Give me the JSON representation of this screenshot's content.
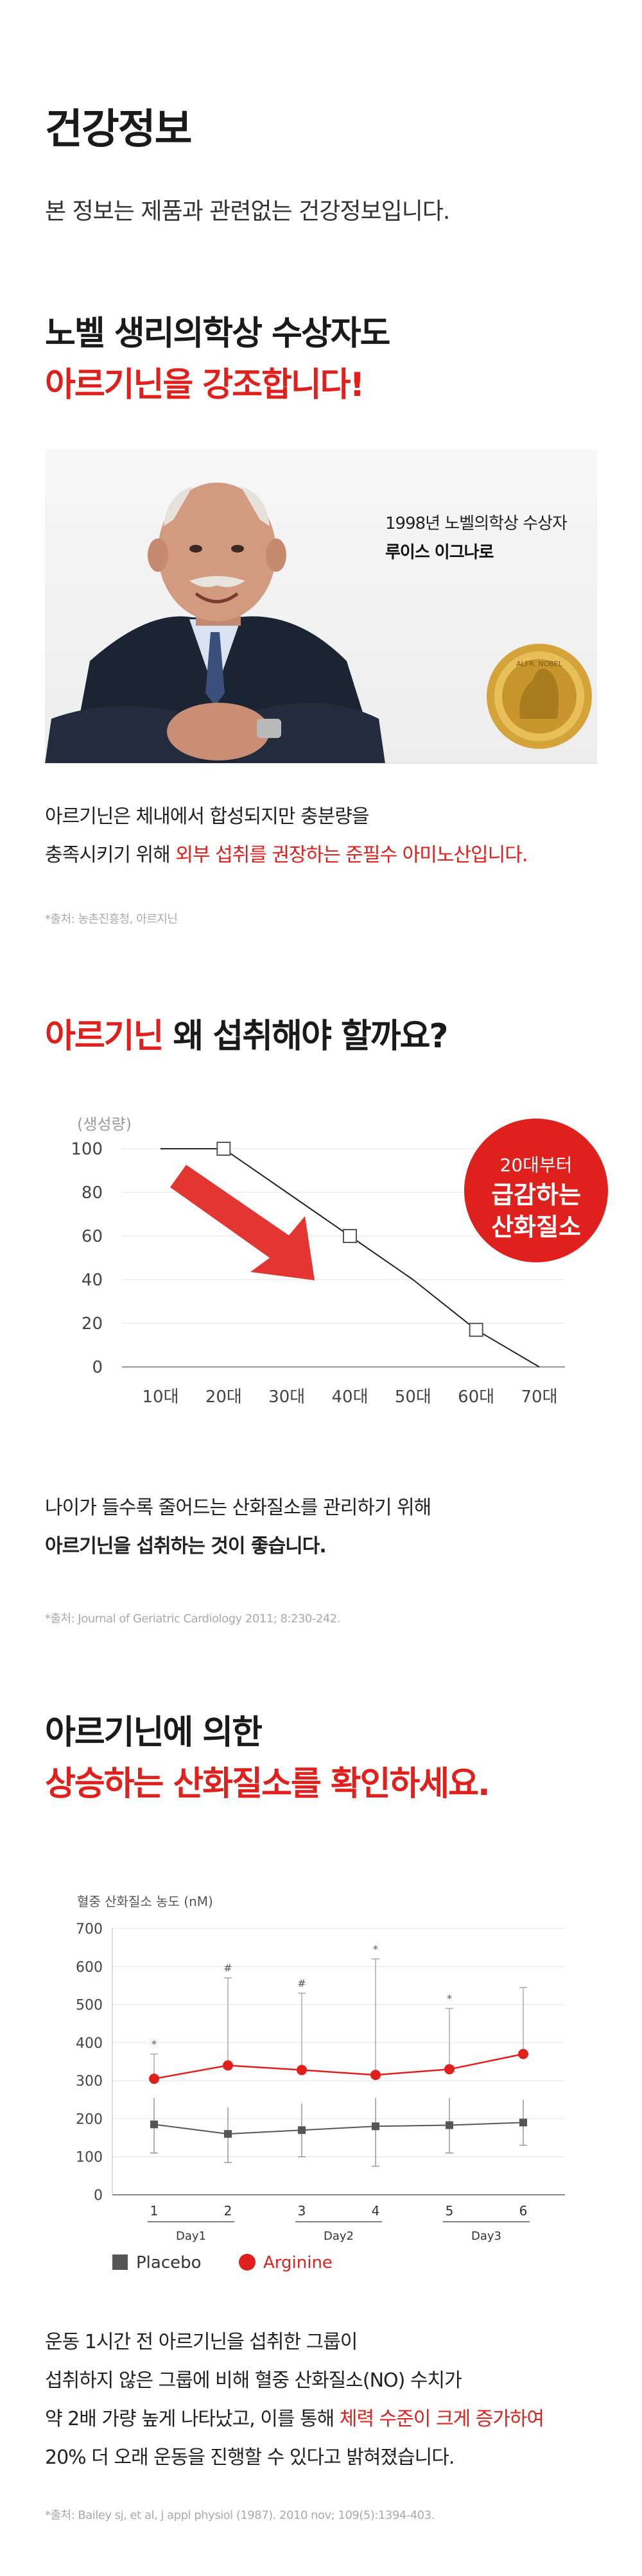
{
  "header": {
    "title": "건강정보",
    "subtitle": "본 정보는 제품과 관련없는 건강정보입니다."
  },
  "section1": {
    "heading_line1": "노벨 생리의학상 수상자도",
    "heading_line2": "아르기닌을 강조합니다!",
    "photo_caption_line1": "1998년 노벨의학상 수상자",
    "photo_caption_line2": "루이스 이그나로",
    "medal_text": "ALFR. NOBEL",
    "body_line1": "아르기닌은 체내에서 합성되지만 충분량을",
    "body_line2_plain": "충족시키기 위해 ",
    "body_line2_red": "외부 섭취를 권장하는 준필수 아미노산입니다.",
    "source": "*출처: 농촌진흥청, 아르지닌"
  },
  "section2": {
    "heading_red": "아르기닌",
    "heading_plain": " 왜 섭취해야 할까요?",
    "badge_line1": "20대부터",
    "badge_line2": "급감하는",
    "badge_line3": "산화질소",
    "body_line1": "나이가 들수록 줄어드는 산화질소를 관리하기 위해",
    "body_line2": "아르기닌을 섭취하는 것이 좋습니다.",
    "source": "*출처: Journal of Geriatric Cardiology 2011; 8:230-242."
  },
  "section3": {
    "heading_line1": "아르기닌에 의한",
    "heading_line2": "상승하는 산화질소를 확인하세요.",
    "body_line1": "운동 1시간 전 아르기닌을 섭취한 그룹이",
    "body_line2": "섭취하지 않은 그룹에 비해 혈중 산화질소(NO) 수치가",
    "body_line3_plain": "약 2배 가량 높게 나타났고, 이를 통해 ",
    "body_line3_red": "체력 수준이 크게 증가하여",
    "body_line4": "20% 더 오래 운동을 진행할 수 있다고 밝혀졌습니다.",
    "source": "*출처: Bailey sj, et al, j appl physiol (1987). 2010 nov; 109(5):1394-403."
  },
  "colors": {
    "accent_red": "#e0201c",
    "placebo_gray": "#555555"
  },
  "chart_data": [
    {
      "type": "line",
      "title": "",
      "ylabel": "(생성량)",
      "xlabel": "",
      "categories": [
        "10대",
        "20대",
        "30대",
        "40대",
        "50대",
        "60대",
        "70대"
      ],
      "y_ticks": [
        0,
        20,
        40,
        60,
        80,
        100
      ],
      "ylim": [
        0,
        100
      ],
      "series": [
        {
          "x": [
            "10대",
            "20대",
            "30대",
            "40대",
            "50대",
            "60대",
            "70대"
          ],
          "values": [
            100,
            100,
            80,
            60,
            40,
            17,
            0
          ],
          "markers": [
            "20대",
            "40대",
            "60대"
          ]
        }
      ],
      "grid": true,
      "annotation": "20대부터 급감하는 산화질소"
    },
    {
      "type": "line",
      "title": "",
      "ylabel": "혈중 산화질소 농도 (nM)",
      "categories": [
        "1",
        "2",
        "3",
        "4",
        "5",
        "6"
      ],
      "group_labels": [
        "Day1",
        "Day2",
        "Day3"
      ],
      "y_ticks": [
        0,
        100,
        200,
        300,
        400,
        500,
        600,
        700
      ],
      "ylim": [
        0,
        700
      ],
      "grid": true,
      "legend_position": "bottom",
      "series": [
        {
          "name": "Placebo",
          "values": [
            185,
            160,
            170,
            180,
            183,
            190
          ],
          "err_low": [
            110,
            85,
            100,
            75,
            110,
            130
          ],
          "err_high": [
            255,
            230,
            240,
            255,
            255,
            250
          ]
        },
        {
          "name": "Arginine",
          "values": [
            305,
            340,
            328,
            315,
            330,
            370
          ],
          "err_high": [
            370,
            570,
            530,
            620,
            490,
            545
          ],
          "significance": [
            "*",
            "#",
            "#",
            "*",
            "*",
            ""
          ]
        }
      ]
    }
  ]
}
